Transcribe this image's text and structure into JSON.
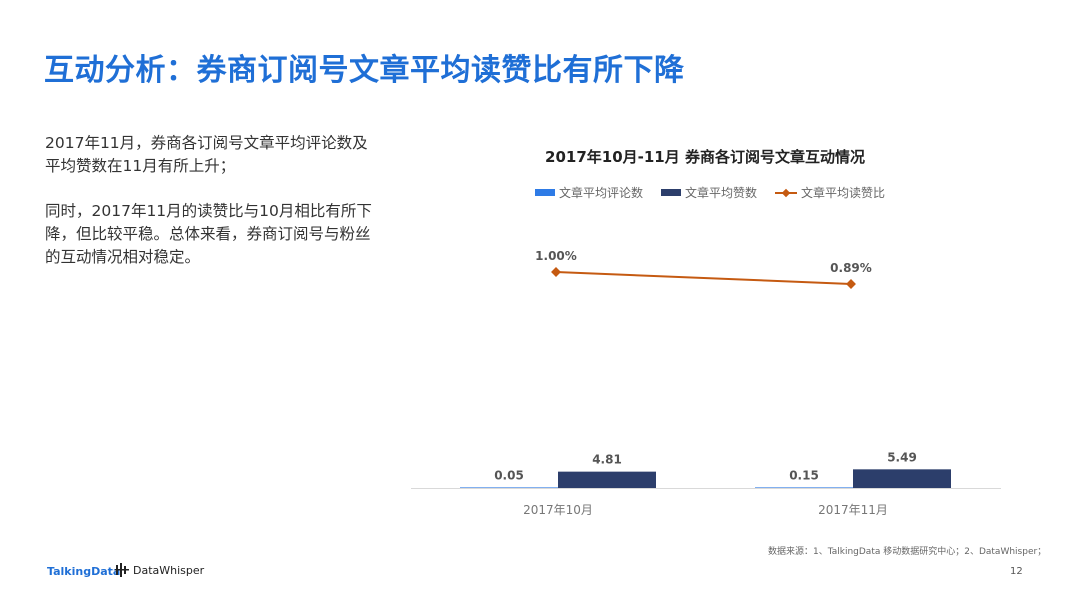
{
  "page": {
    "title": "互动分析：券商订阅号文章平均读赞比有所下降",
    "paragraphs": [
      "2017年11月，券商各订阅号文章平均评论数及平均赞数在11月有所上升；",
      "同时，2017年11月的读赞比与10月相比有所下降，但比较平稳。总体来看，券商订阅号与粉丝的互动情况相对稳定。"
    ],
    "source": "数据来源：1、TalkingData 移动数据研究中心；2、DataWhisper；",
    "page_number": "12",
    "logos": {
      "talkingdata": "TalkingData",
      "datawhisper": "DataWhisper"
    }
  },
  "chart_data": {
    "type": "bar",
    "title": "2017年10月-11月 券商各订阅号文章互动情况",
    "categories": [
      "2017年10月",
      "2017年11月"
    ],
    "series": [
      {
        "name": "文章平均评论数",
        "type": "bar",
        "color": "#2e7be6",
        "values": [
          0.05,
          0.15
        ],
        "labels": [
          "0.05",
          "0.15"
        ]
      },
      {
        "name": "文章平均赞数",
        "type": "bar",
        "color": "#2c3e6b",
        "values": [
          4.81,
          5.49
        ],
        "labels": [
          "4.81",
          "5.49"
        ]
      },
      {
        "name": "文章平均读赞比",
        "type": "line",
        "color": "#c55a11",
        "values": [
          1.0,
          0.89
        ],
        "labels": [
          "1.00%",
          "0.89%"
        ],
        "unit": "%"
      }
    ],
    "grid": false,
    "legend_position": "top"
  }
}
